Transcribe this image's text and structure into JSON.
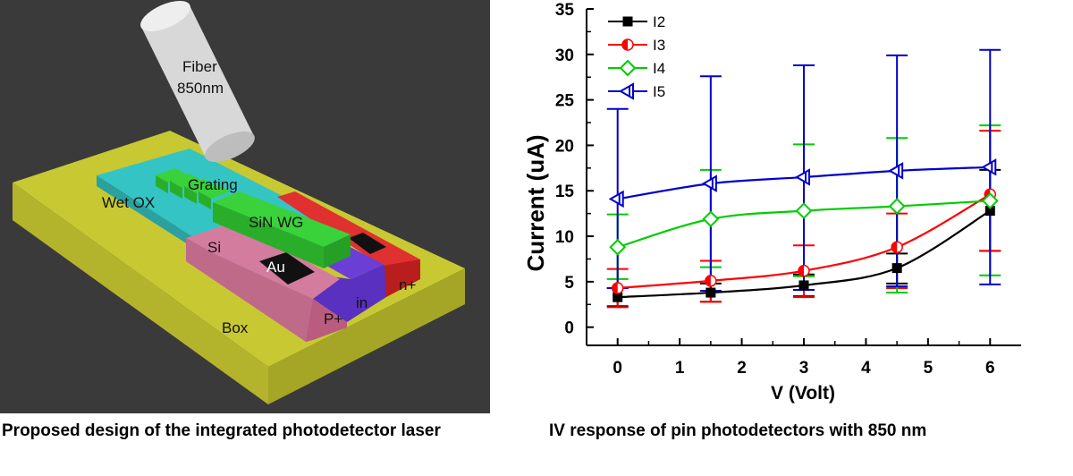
{
  "left_figure": {
    "labels": {
      "fiber": "Fiber",
      "wavelength": "850nm",
      "grating": "Grating",
      "wet_ox": "Wet OX",
      "sin_wg": "SiN WG",
      "si": "Si",
      "au": "Au",
      "p_plus": "P+",
      "in": "in",
      "n_plus": "n+",
      "box": "Box"
    },
    "caption": "Proposed design of the integrated photodetector laser",
    "colors": {
      "background": "#3a3a3a",
      "box": "#c8c832",
      "wet_ox": "#35c4c4",
      "grating": "#3ad23a",
      "fiber": "#d8d8d8",
      "si": "#d37c9e",
      "intrinsic": "#6b3fd6",
      "n_plus": "#d92828",
      "au": "#111111"
    }
  },
  "caption_right": "IV response of pin photodetectors with 850 nm",
  "chart_data": {
    "type": "line",
    "xlabel": "V (Volt)",
    "ylabel": "Current (uA)",
    "xlim": [
      -0.5,
      6.5
    ],
    "ylim": [
      -2,
      35
    ],
    "x_ticks": [
      0,
      1,
      2,
      3,
      4,
      5,
      6
    ],
    "y_ticks": [
      0,
      5,
      10,
      15,
      20,
      25,
      30,
      35
    ],
    "grid": false,
    "legend_position": "top-left",
    "series": [
      {
        "name": "I2",
        "color": "#000000",
        "marker": "square",
        "x": [
          0,
          1.5,
          3,
          4.5,
          6
        ],
        "y": [
          3.3,
          3.8,
          4.6,
          6.5,
          12.8
        ],
        "err_low": [
          2.3,
          2.8,
          3.4,
          4.8,
          8.4
        ],
        "err_high": [
          4.3,
          4.8,
          5.8,
          8.1,
          17.3
        ]
      },
      {
        "name": "I3",
        "color": "#ff0000",
        "marker": "half-circle",
        "x": [
          0,
          1.5,
          3,
          4.5,
          6
        ],
        "y": [
          4.3,
          5.1,
          6.2,
          8.8,
          14.6
        ],
        "err_low": [
          2.2,
          2.8,
          3.3,
          4.3,
          8.4
        ],
        "err_high": [
          6.4,
          7.3,
          9.0,
          12.5,
          21.6
        ]
      },
      {
        "name": "I4",
        "color": "#00cc00",
        "marker": "diamond",
        "x": [
          0,
          1.5,
          3,
          4.5,
          6
        ],
        "y": [
          8.8,
          11.9,
          12.8,
          13.3,
          13.9
        ],
        "err_low": [
          5.3,
          6.6,
          5.6,
          3.8,
          5.7
        ],
        "err_high": [
          12.4,
          17.3,
          20.1,
          20.8,
          22.2
        ]
      },
      {
        "name": "I5",
        "color": "#0000cc",
        "marker": "left-triangle",
        "x": [
          0,
          1.5,
          3,
          4.5,
          6
        ],
        "y": [
          14.1,
          15.8,
          16.5,
          17.2,
          17.6
        ],
        "err_low": [
          4.3,
          4.0,
          4.1,
          4.5,
          4.7
        ],
        "err_high": [
          24.0,
          27.6,
          28.8,
          29.9,
          30.5
        ]
      }
    ]
  }
}
